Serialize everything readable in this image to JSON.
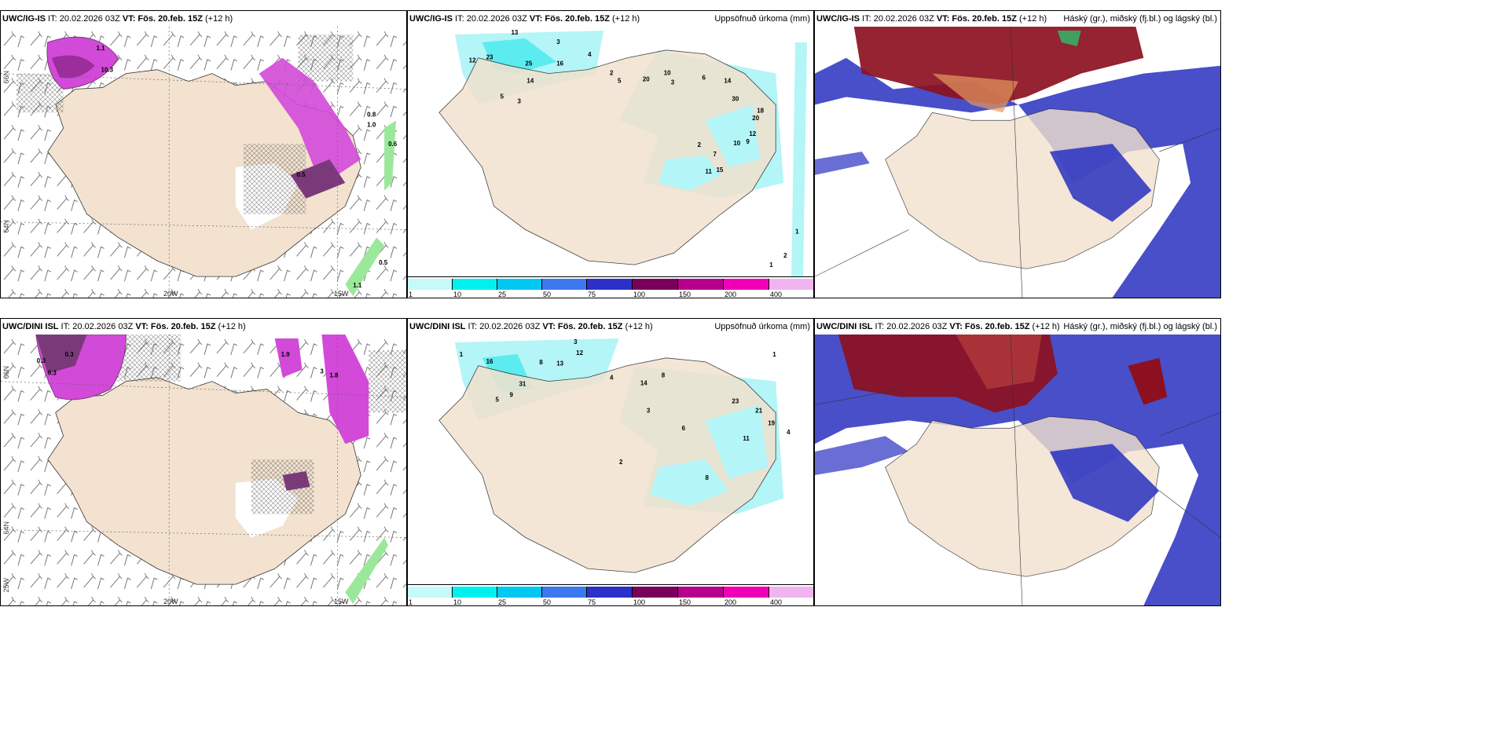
{
  "rows": [
    {
      "model": "UWC/IG-IS",
      "run_label": " IT: 20.02.2026 03Z ",
      "vt_label": "VT: Fös. 20.feb. 15Z",
      "lead": " (+12 h)"
    },
    {
      "model": "UWC/DINI ISL",
      "run_label": " IT: 20.02.2026 03Z ",
      "vt_label": "VT: Fös. 20.feb. 15Z",
      "lead": " (+12 h)"
    }
  ],
  "precip_title": "Uppsöfnuð úrkoma (mm)",
  "cloud_title": "Háský (gr.), miðský (fj.bl.) og lágský (bl.)",
  "lat_labels": [
    "66N",
    "64N",
    "65N",
    "63N"
  ],
  "lon_labels": [
    "20W",
    "15W",
    "25W"
  ],
  "colorbar": {
    "ticks": [
      "1",
      "10",
      "25",
      "50",
      "75",
      "100",
      "150",
      "200",
      "400"
    ],
    "colors": [
      "#c4fafa",
      "#00f0f0",
      "#00c8f0",
      "#3c78f0",
      "#2c30c8",
      "#78005a",
      "#b4008c",
      "#f000b4",
      "#f0b4f0"
    ]
  },
  "colors": {
    "land": "#f2e2cf",
    "precip_light": "#b4f5f7",
    "precip_mid": "#5cecf0",
    "snow_purple": "#d24ad8",
    "snow_dark": "#7a3a7a",
    "high_cloud": "#8c1020",
    "mid_cloud": "#2830c0",
    "green": "#9be89b"
  },
  "wind_panel_values": {
    "top": [
      "1.1",
      "10.3",
      "0.8",
      "1.0",
      "0.6",
      "0.5",
      "0.5",
      "1.1"
    ],
    "bottom": [
      "0.3",
      "0.3",
      "0.3",
      "1.9",
      "3",
      "1.8"
    ]
  },
  "precip_values": {
    "top": [
      "13",
      "3",
      "4",
      "12",
      "23",
      "25",
      "16",
      "14",
      "5",
      "3",
      "2",
      "5",
      "10",
      "20",
      "3",
      "6",
      "14",
      "30",
      "18",
      "20",
      "12",
      "10",
      "9",
      "7",
      "11",
      "15",
      "2",
      "1",
      "2",
      "1"
    ],
    "bottom": [
      "1",
      "3",
      "12",
      "16",
      "8",
      "13",
      "31",
      "9",
      "5",
      "4",
      "14",
      "8",
      "3",
      "6",
      "23",
      "21",
      "11",
      "19",
      "2",
      "8",
      "1",
      "4"
    ]
  }
}
